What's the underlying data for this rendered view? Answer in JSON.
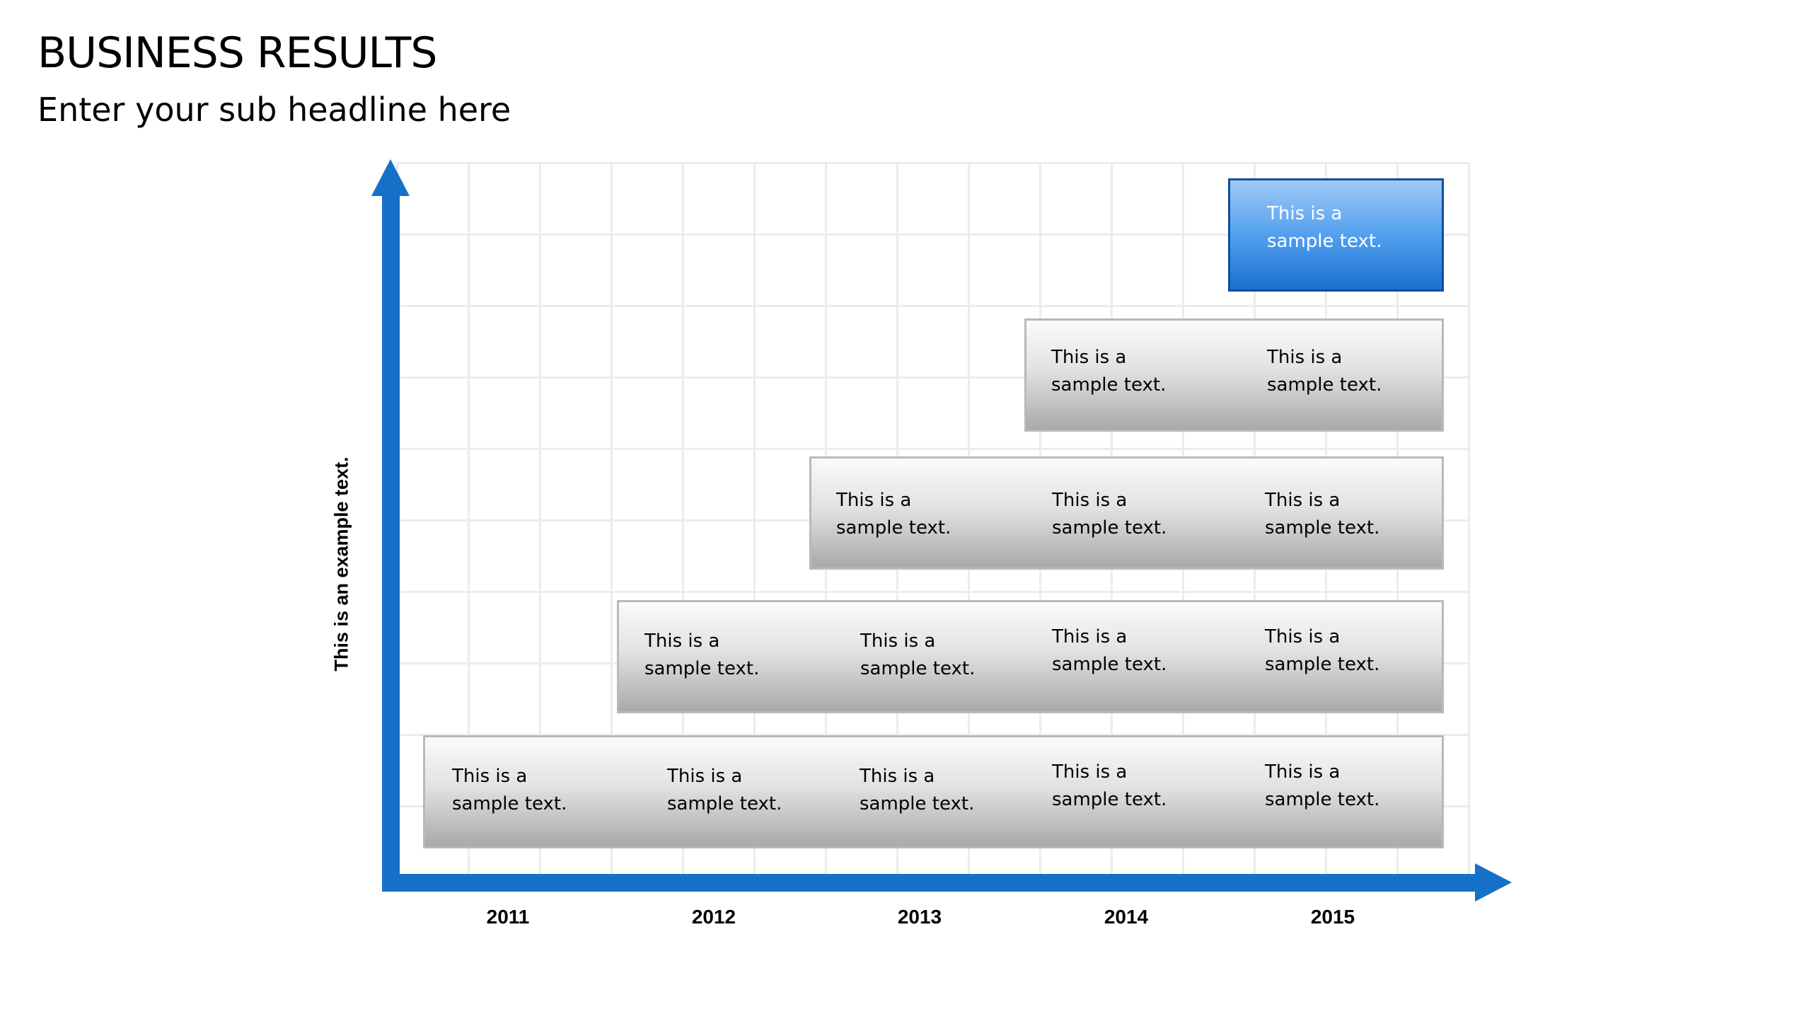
{
  "slide": {
    "title": "BUSINESS RESULTS",
    "subtitle": "Enter your sub headline here"
  },
  "diagram": {
    "y_axis_label": "This is an example text.",
    "x_axis_labels": [
      "2011",
      "2012",
      "2013",
      "2014",
      "2015"
    ],
    "axis_color": "#1570c8",
    "bar_color": "#b0b0b0",
    "highlight_color": "#3d8fe6",
    "rows": [
      {
        "start_year": "2011",
        "cells": [
          {
            "line1": "This is a",
            "line2": "sample text."
          },
          {
            "line1": "This is a",
            "line2": "sample text."
          },
          {
            "line1": "This is a",
            "line2": "sample text."
          },
          {
            "line1": "This is a",
            "line2": "sample text."
          },
          {
            "line1": "This is a",
            "line2": "sample text."
          }
        ]
      },
      {
        "start_year": "2012",
        "cells": [
          {
            "line1": "This is a",
            "line2": "sample text."
          },
          {
            "line1": "This is a",
            "line2": "sample text."
          },
          {
            "line1": "This is a",
            "line2": "sample text."
          },
          {
            "line1": "This is a",
            "line2": "sample text."
          }
        ]
      },
      {
        "start_year": "2013",
        "cells": [
          {
            "line1": "This is a",
            "line2": "sample text."
          },
          {
            "line1": "This is a",
            "line2": "sample text."
          },
          {
            "line1": "This is a",
            "line2": "sample text."
          }
        ]
      },
      {
        "start_year": "2014",
        "cells": [
          {
            "line1": "This is a",
            "line2": "sample text."
          },
          {
            "line1": "This is a",
            "line2": "sample text."
          }
        ]
      },
      {
        "start_year": "2015",
        "highlight": true,
        "cells": [
          {
            "line1": "This is a",
            "line2": "sample text."
          }
        ]
      }
    ]
  }
}
